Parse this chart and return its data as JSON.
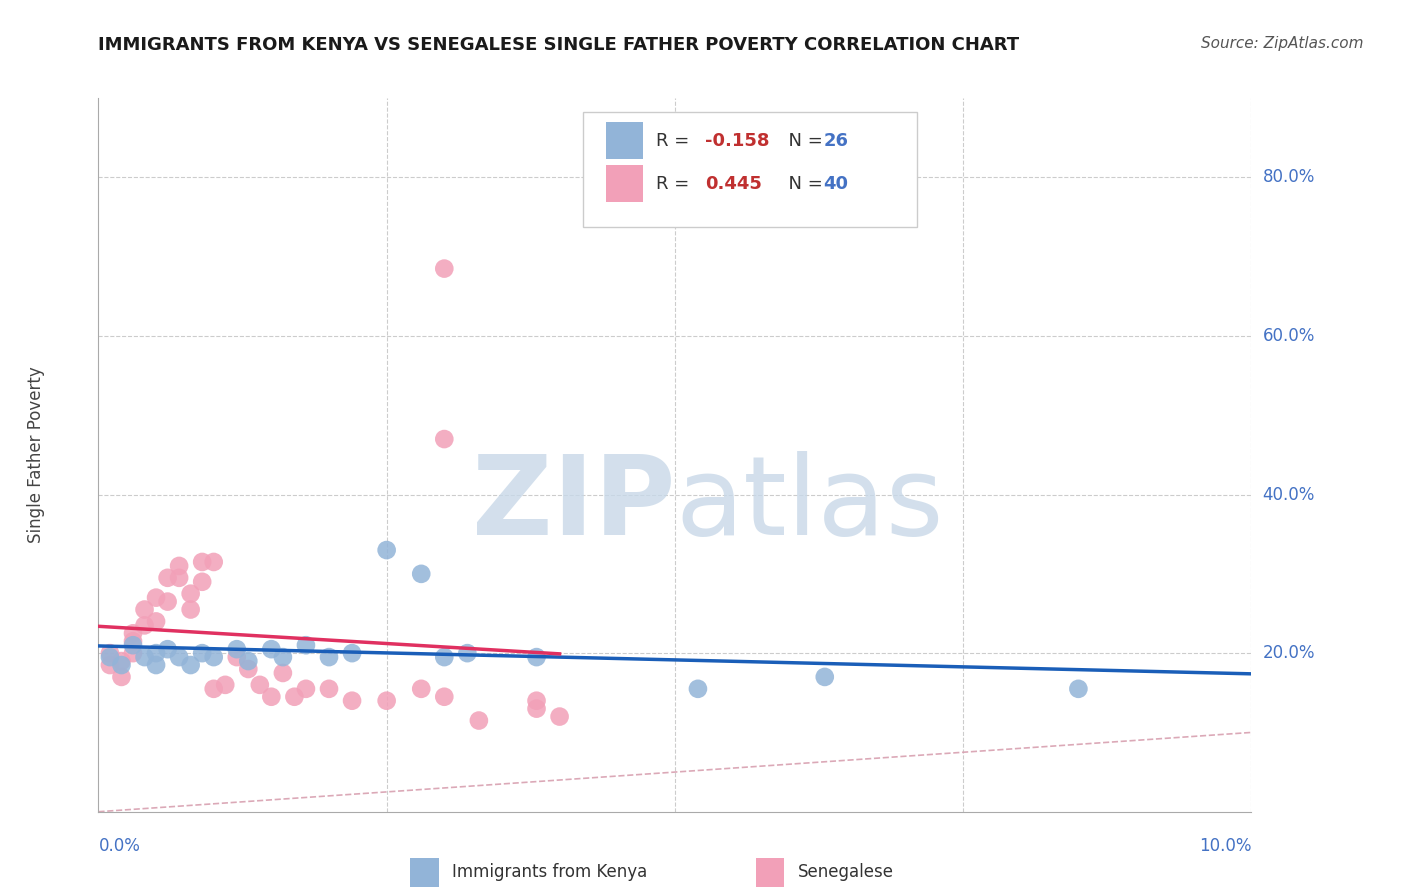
{
  "title": "IMMIGRANTS FROM KENYA VS SENEGALESE SINGLE FATHER POVERTY CORRELATION CHART",
  "source": "Source: ZipAtlas.com",
  "ylabel": "Single Father Poverty",
  "xlim": [
    0.0,
    0.1
  ],
  "ylim": [
    0.0,
    0.9
  ],
  "yticks": [
    0.0,
    0.2,
    0.4,
    0.6,
    0.8
  ],
  "ytick_labels": [
    "",
    "20.0%",
    "40.0%",
    "60.0%",
    "80.0%"
  ],
  "xticks": [
    0.0,
    0.025,
    0.05,
    0.075,
    0.1
  ],
  "xtick_labels": [
    "0.0%",
    "",
    "",
    "",
    "10.0%"
  ],
  "kenya_color": "#92b4d8",
  "senegal_color": "#f2a0b8",
  "kenya_line_color": "#1a5eb8",
  "senegal_line_color": "#e03060",
  "diagonal_color": "#d8a0b0",
  "kenya_x": [
    0.001,
    0.002,
    0.003,
    0.004,
    0.005,
    0.005,
    0.006,
    0.007,
    0.008,
    0.009,
    0.01,
    0.012,
    0.013,
    0.015,
    0.016,
    0.018,
    0.02,
    0.022,
    0.025,
    0.028,
    0.03,
    0.032,
    0.038,
    0.052,
    0.063,
    0.085
  ],
  "kenya_y": [
    0.195,
    0.185,
    0.21,
    0.195,
    0.2,
    0.185,
    0.205,
    0.195,
    0.185,
    0.2,
    0.195,
    0.205,
    0.19,
    0.205,
    0.195,
    0.21,
    0.195,
    0.2,
    0.33,
    0.3,
    0.195,
    0.2,
    0.195,
    0.155,
    0.17,
    0.155
  ],
  "senegal_x": [
    0.001,
    0.001,
    0.002,
    0.002,
    0.003,
    0.003,
    0.003,
    0.004,
    0.004,
    0.005,
    0.005,
    0.006,
    0.006,
    0.007,
    0.007,
    0.008,
    0.008,
    0.009,
    0.009,
    0.01,
    0.01,
    0.011,
    0.012,
    0.013,
    0.014,
    0.015,
    0.016,
    0.017,
    0.018,
    0.02,
    0.022,
    0.025,
    0.028,
    0.03,
    0.033,
    0.038,
    0.038,
    0.04,
    0.03,
    0.03
  ],
  "senegal_y": [
    0.185,
    0.2,
    0.17,
    0.19,
    0.2,
    0.215,
    0.225,
    0.235,
    0.255,
    0.24,
    0.27,
    0.265,
    0.295,
    0.295,
    0.31,
    0.255,
    0.275,
    0.29,
    0.315,
    0.315,
    0.155,
    0.16,
    0.195,
    0.18,
    0.16,
    0.145,
    0.175,
    0.145,
    0.155,
    0.155,
    0.14,
    0.14,
    0.155,
    0.145,
    0.115,
    0.14,
    0.13,
    0.12,
    0.47,
    0.685
  ],
  "legend_r1_val": "-0.158",
  "legend_n1": "26",
  "legend_r2_val": "0.445",
  "legend_n2": "40",
  "watermark_zip": "ZIP",
  "watermark_atlas": "atlas",
  "legend_label1": "Immigrants from Kenya",
  "legend_label2": "Senegalese"
}
